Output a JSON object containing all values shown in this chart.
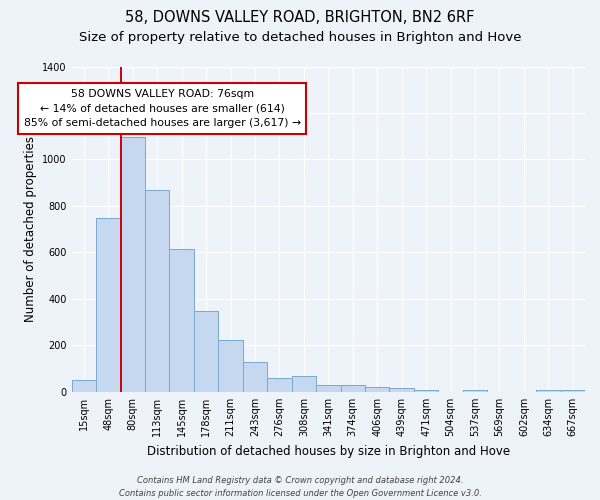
{
  "title": "58, DOWNS VALLEY ROAD, BRIGHTON, BN2 6RF",
  "subtitle": "Size of property relative to detached houses in Brighton and Hove",
  "xlabel": "Distribution of detached houses by size in Brighton and Hove",
  "ylabel": "Number of detached properties",
  "categories": [
    "15sqm",
    "48sqm",
    "80sqm",
    "113sqm",
    "145sqm",
    "178sqm",
    "211sqm",
    "243sqm",
    "276sqm",
    "308sqm",
    "341sqm",
    "374sqm",
    "406sqm",
    "439sqm",
    "471sqm",
    "504sqm",
    "537sqm",
    "569sqm",
    "602sqm",
    "634sqm",
    "667sqm"
  ],
  "values": [
    50,
    750,
    1095,
    870,
    615,
    348,
    225,
    130,
    62,
    70,
    30,
    30,
    22,
    15,
    10,
    0,
    10,
    0,
    0,
    10,
    10
  ],
  "bar_color": "#c5d8f0",
  "bar_edge_color": "#7aaad0",
  "vline_x": 2,
  "vline_color": "#cc0000",
  "annotation_text": "58 DOWNS VALLEY ROAD: 76sqm\n← 14% of detached houses are smaller (614)\n85% of semi-detached houses are larger (3,617) →",
  "annotation_box_color": "#ffffff",
  "annotation_box_edge": "#cc0000",
  "ylim": [
    0,
    1400
  ],
  "yticks": [
    0,
    200,
    400,
    600,
    800,
    1000,
    1200,
    1400
  ],
  "footer": "Contains HM Land Registry data © Crown copyright and database right 2024.\nContains public sector information licensed under the Open Government Licence v3.0.",
  "bg_color": "#eef2f9",
  "grid_color": "#ffffff",
  "title_fontsize": 10.5,
  "subtitle_fontsize": 9.5,
  "axis_label_fontsize": 8.5,
  "tick_fontsize": 7,
  "annotation_fontsize": 7.8,
  "footer_fontsize": 6
}
